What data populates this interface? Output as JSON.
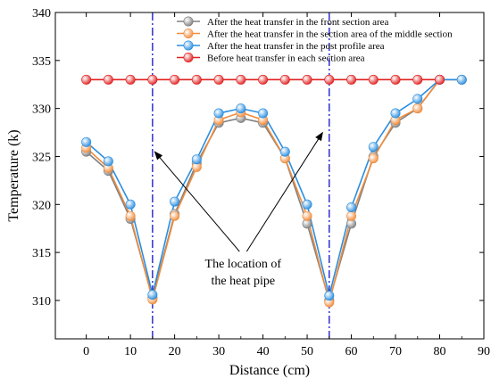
{
  "chart_data": {
    "type": "line",
    "xlabel": "Distance (cm)",
    "ylabel": "Temperature (k)",
    "xlim": [
      -7,
      90
    ],
    "ylim": [
      306,
      340
    ],
    "xticks": [
      0,
      10,
      20,
      30,
      40,
      50,
      60,
      70,
      80,
      90
    ],
    "yticks": [
      310,
      315,
      320,
      325,
      330,
      335,
      340
    ],
    "grid": false,
    "legend_position": "top-right",
    "series": [
      {
        "name": "After the heat transfer in the front section area",
        "color": "#808080",
        "x": [
          0,
          5,
          10,
          15,
          20,
          25,
          30,
          35,
          40,
          45,
          50,
          55,
          60,
          65,
          70,
          75,
          80,
          85
        ],
        "values": [
          325.5,
          323.5,
          318.5,
          310.3,
          319.0,
          324.3,
          328.5,
          329.0,
          328.5,
          324.8,
          318.0,
          310.0,
          318.0,
          325.0,
          328.5,
          330.0,
          333.0,
          333.0
        ]
      },
      {
        "name": "After the heat transfer in the section area of the middle section",
        "color": "#f08c3c",
        "x": [
          0,
          5,
          10,
          15,
          20,
          25,
          30,
          35,
          40,
          45,
          50,
          55,
          60,
          65,
          70,
          75,
          80,
          85
        ],
        "values": [
          325.9,
          323.8,
          318.8,
          310.1,
          318.8,
          323.9,
          328.8,
          329.6,
          328.8,
          324.8,
          318.8,
          309.8,
          318.8,
          324.8,
          328.8,
          330.0,
          333.0,
          333.0
        ]
      },
      {
        "name": "After the heat transfer in the post profile area",
        "color": "#2a8ee0",
        "x": [
          0,
          5,
          10,
          15,
          20,
          25,
          30,
          35,
          40,
          45,
          50,
          55,
          60,
          65,
          70,
          75,
          80,
          85
        ],
        "values": [
          326.5,
          324.5,
          320.0,
          310.6,
          320.3,
          324.7,
          329.5,
          330.0,
          329.5,
          325.5,
          320.0,
          310.5,
          319.7,
          326.0,
          329.5,
          331.0,
          333.0,
          333.0
        ]
      },
      {
        "name": "Before heat transfer in each section area",
        "color": "#e02020",
        "x": [
          0,
          5,
          10,
          15,
          20,
          25,
          30,
          35,
          40,
          45,
          50,
          55,
          60,
          65,
          70,
          75,
          80
        ],
        "values": [
          333,
          333,
          333,
          333,
          333,
          333,
          333,
          333,
          333,
          333,
          333,
          333,
          333,
          333,
          333,
          333,
          333
        ]
      }
    ],
    "reference_lines": [
      {
        "x": 15,
        "color": "#1010cc",
        "style": "dash-dot"
      },
      {
        "x": 55,
        "color": "#1010cc",
        "style": "dash-dot"
      }
    ],
    "annotation": {
      "text_line1": "The location of",
      "text_line2": "the heat pipe",
      "arrow_targets": [
        {
          "x": 15.5,
          "y": 325.5
        },
        {
          "x": 53.5,
          "y": 327.5
        }
      ],
      "text_anchor": {
        "x": 35.5,
        "y": 313.8
      }
    }
  }
}
